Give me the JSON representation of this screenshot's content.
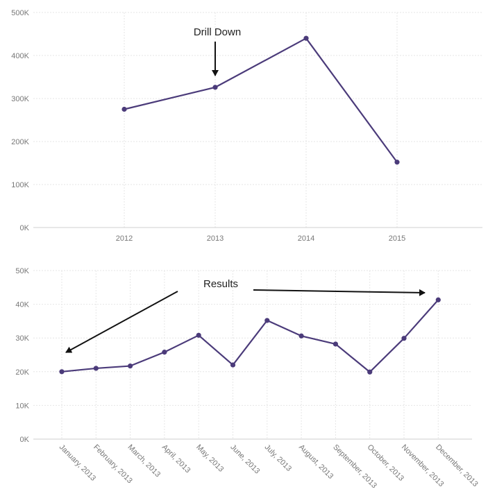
{
  "chart_data": [
    {
      "type": "line",
      "title": "",
      "xlabel": "",
      "ylabel": "",
      "categories": [
        "2012",
        "2013",
        "2014",
        "2015"
      ],
      "values": [
        275000,
        326000,
        440000,
        152000
      ],
      "ylim": [
        0,
        500000
      ],
      "yticks": [
        "0K",
        "100K",
        "200K",
        "300K",
        "400K",
        "500K"
      ],
      "grid": true,
      "legend": "none",
      "line_color": "#4b3b7a",
      "annotation": "Drill Down"
    },
    {
      "type": "line",
      "title": "",
      "xlabel": "",
      "ylabel": "",
      "categories": [
        "January, 2013",
        "February, 2013",
        "March, 2013",
        "April, 2013",
        "May, 2013",
        "June, 2013",
        "July, 2013",
        "August, 2013",
        "September, 2013",
        "October, 2013",
        "November, 2013",
        "December, 2013"
      ],
      "values": [
        20000,
        21000,
        21700,
        25800,
        30800,
        22000,
        35200,
        30600,
        28200,
        19900,
        29900,
        41300
      ],
      "ylim": [
        0,
        50000
      ],
      "yticks": [
        "0K",
        "10K",
        "20K",
        "30K",
        "40K",
        "50K"
      ],
      "grid": true,
      "legend": "none",
      "line_color": "#4b3b7a",
      "annotation": "Results"
    }
  ]
}
